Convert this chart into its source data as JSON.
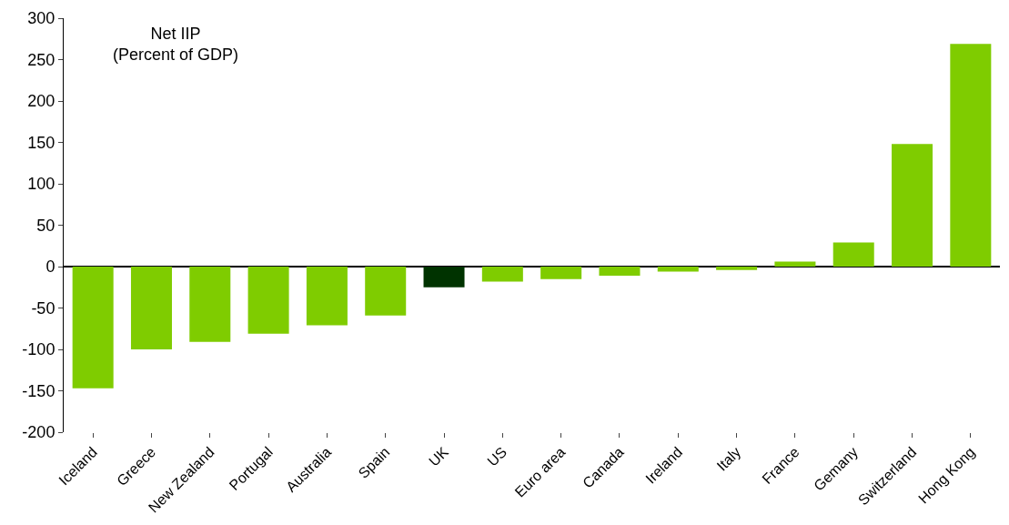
{
  "chart_data": {
    "type": "bar",
    "title": "Net IIP",
    "subtitle": "(Percent of GDP)",
    "categories": [
      "Iceland",
      "Greece",
      "New Zealand",
      "Portugal",
      "Australia",
      "Spain",
      "UK",
      "US",
      "Euro area",
      "Canada",
      "Ireland",
      "Italy",
      "France",
      "Gemany",
      "Switzerland",
      "Hong Kong"
    ],
    "values": [
      -147,
      -100,
      -91,
      -81,
      -71,
      -59,
      -25,
      -18,
      -15,
      -11,
      -6,
      -4,
      6,
      29,
      148,
      269
    ],
    "colors": [
      "#7fcc00",
      "#7fcc00",
      "#7fcc00",
      "#7fcc00",
      "#7fcc00",
      "#7fcc00",
      "#003300",
      "#7fcc00",
      "#7fcc00",
      "#7fcc00",
      "#7fcc00",
      "#7fcc00",
      "#7fcc00",
      "#7fcc00",
      "#7fcc00",
      "#7fcc00"
    ],
    "ylim": [
      -200,
      300
    ],
    "yticks": [
      -200,
      -150,
      -100,
      -50,
      0,
      50,
      100,
      150,
      200,
      250,
      300
    ],
    "legend": false
  }
}
